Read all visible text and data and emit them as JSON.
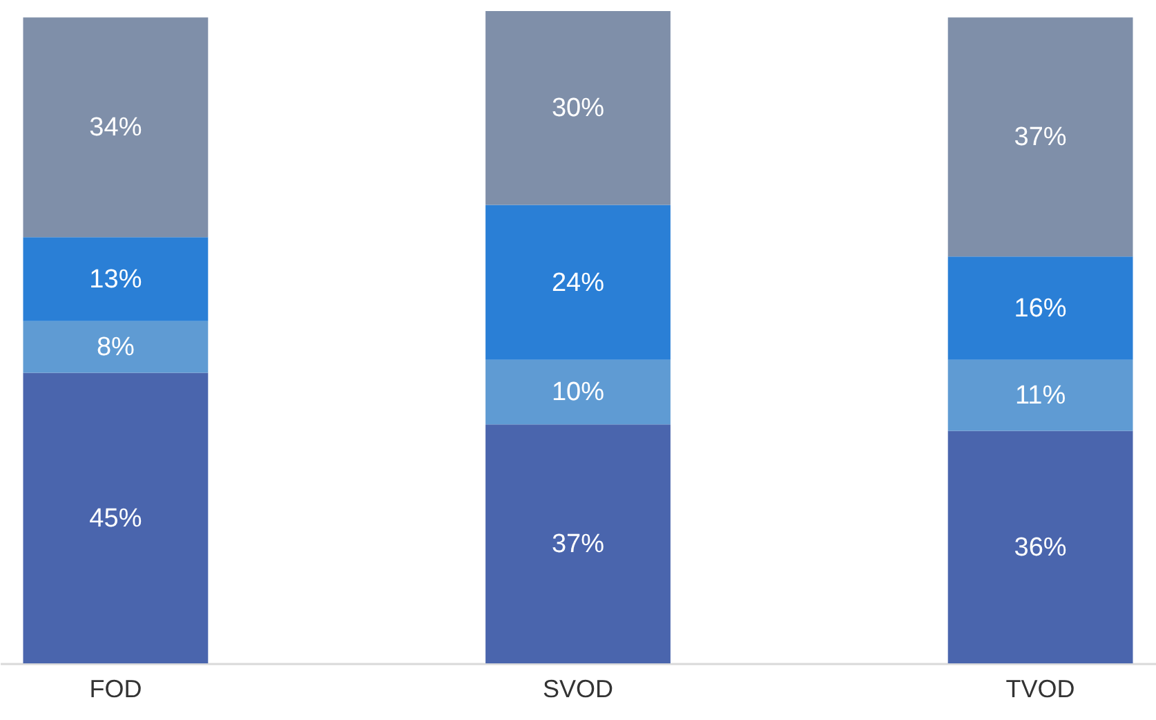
{
  "chart_data": {
    "type": "bar",
    "stacked": true,
    "legend": false,
    "grid": false,
    "categories": [
      "FOD",
      "SVOD",
      "TVOD"
    ],
    "series": [
      {
        "color": "#4a65ad",
        "values": [
          45,
          37,
          36
        ],
        "value_labels": [
          "45%",
          "37%",
          "36%"
        ]
      },
      {
        "color": "#5f9bd3",
        "values": [
          8,
          10,
          11
        ],
        "value_labels": [
          "8%",
          "10%",
          "11%"
        ]
      },
      {
        "color": "#2a7fd6",
        "values": [
          13,
          24,
          16
        ],
        "value_labels": [
          "13%",
          "24%",
          "16%"
        ]
      },
      {
        "color": "#7f8fa9",
        "values": [
          34,
          30,
          37
        ],
        "value_labels": [
          "34%",
          "30%",
          "37%"
        ]
      }
    ]
  }
}
